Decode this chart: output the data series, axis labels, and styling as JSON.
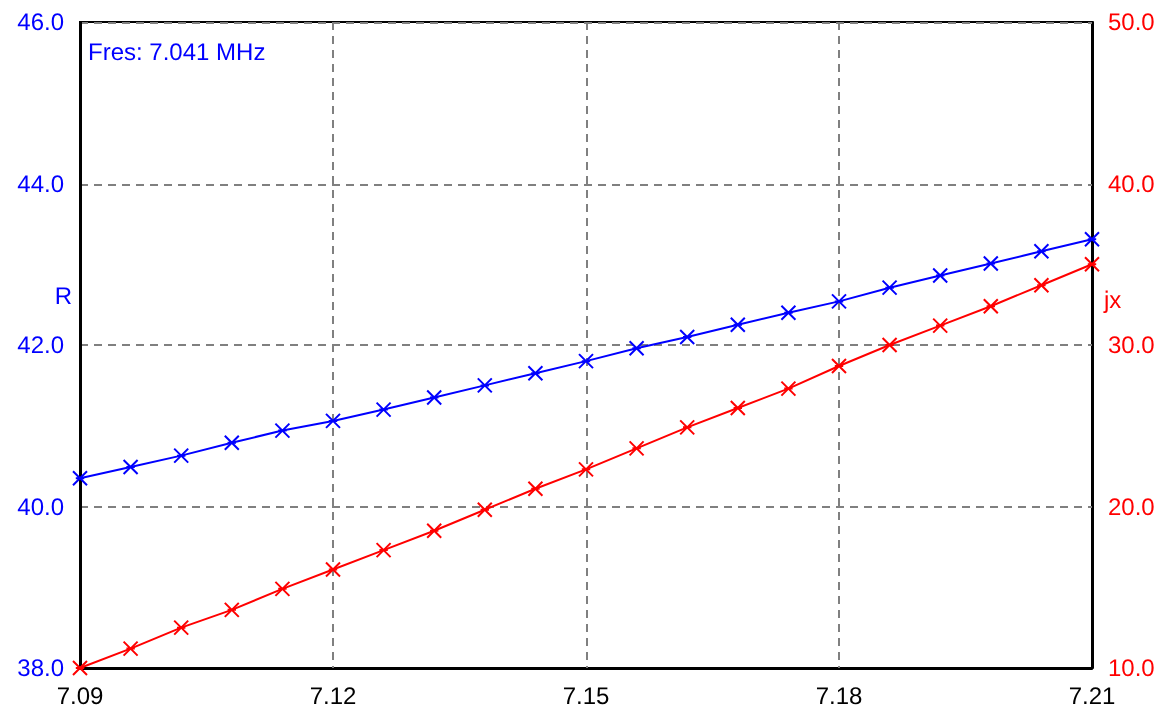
{
  "chart_data": {
    "type": "line",
    "ylabel": "R",
    "y2label": "jx",
    "annotations": [
      "Fres: 7.041 MHz"
    ],
    "x": [
      7.09,
      7.096,
      7.102,
      7.108,
      7.114,
      7.12,
      7.126,
      7.132,
      7.138,
      7.144,
      7.15,
      7.156,
      7.162,
      7.168,
      7.174,
      7.18,
      7.186,
      7.192,
      7.198,
      7.204,
      7.21
    ],
    "series": [
      {
        "color": "#0000ff",
        "values": [
          40.35,
          40.49,
          40.63,
          40.79,
          40.94,
          41.06,
          41.2,
          41.35,
          41.5,
          41.65,
          41.8,
          41.96,
          42.1,
          42.25,
          42.4,
          42.54,
          42.71,
          42.86,
          43.01,
          43.16,
          43.31
        ]
      },
      {
        "color": "#ff0000",
        "axis": "y2",
        "values": [
          10.0,
          11.2,
          12.5,
          13.6,
          14.9,
          16.1,
          17.3,
          18.5,
          19.8,
          21.1,
          22.3,
          23.6,
          24.9,
          26.1,
          27.3,
          28.7,
          30.0,
          31.2,
          32.4,
          33.7,
          35.0
        ]
      }
    ],
    "xlim": [
      7.09,
      7.21
    ],
    "xticks": [
      7.09,
      7.12,
      7.15,
      7.18,
      7.21
    ],
    "ylim": [
      38,
      46
    ],
    "yticks": [
      {
        "value": 38,
        "label": "38.0"
      },
      {
        "value": 40,
        "label": "40.0"
      },
      {
        "value": 42,
        "label": "42.0"
      },
      {
        "value": 44,
        "label": "44.0"
      },
      {
        "value": 46,
        "label": "46.0"
      }
    ],
    "y2lim": [
      10,
      50
    ],
    "y2ticks": [
      {
        "value": 10,
        "label": "10.0"
      },
      {
        "value": 20,
        "label": "20.0"
      },
      {
        "value": 30,
        "label": "30.0"
      },
      {
        "value": 40,
        "label": "40.0"
      },
      {
        "value": 50,
        "label": "50.0"
      }
    ],
    "grid": true,
    "marker": "cross",
    "line_style": "solid"
  }
}
